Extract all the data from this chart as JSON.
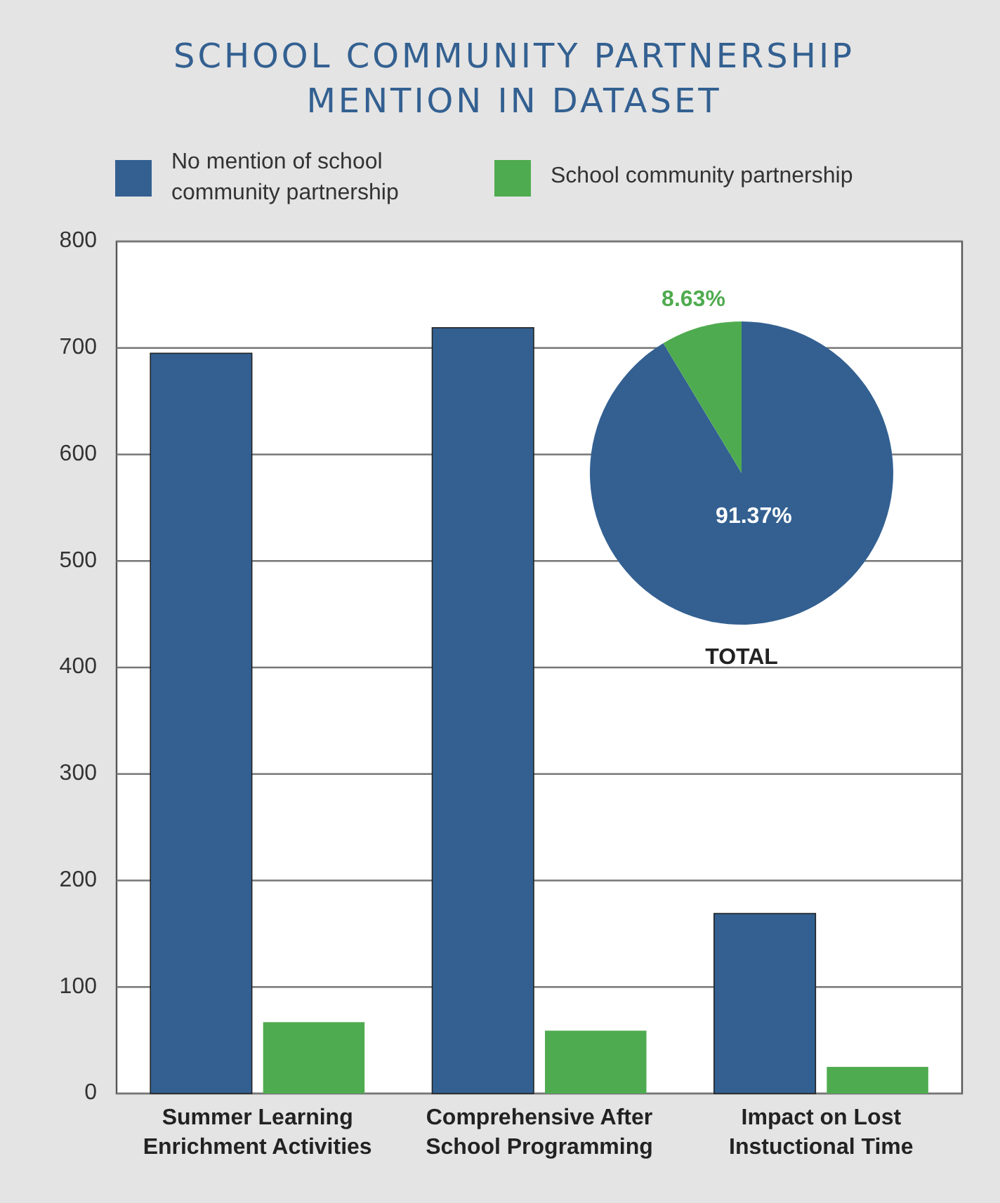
{
  "chart_data": [
    {
      "type": "bar",
      "title": "SCHOOL COMMUNITY PARTNERSHIP MENTION IN DATASET",
      "categories": [
        "Summer Learning Enrichment Activities",
        "Comprehensive After School Programming",
        "Impact on Lost Instuctional Time"
      ],
      "series": [
        {
          "name": "No mention of school community partnership",
          "color": "#336091",
          "values": [
            695,
            719,
            169
          ]
        },
        {
          "name": "School community partnership",
          "color": "#4fab4f",
          "values": [
            67,
            59,
            25
          ]
        }
      ],
      "ylim": [
        0,
        800
      ],
      "yticks": [
        0,
        100,
        200,
        300,
        400,
        500,
        600,
        700,
        800
      ],
      "grid": "y",
      "legend": "top"
    },
    {
      "type": "pie",
      "title": "TOTAL",
      "categories": [
        null,
        null
      ],
      "values": [
        91.37,
        8.63
      ],
      "colors": [
        "#336091",
        "#4fab4f"
      ],
      "value_labels": [
        "91.37%",
        "8.63%"
      ]
    }
  ]
}
